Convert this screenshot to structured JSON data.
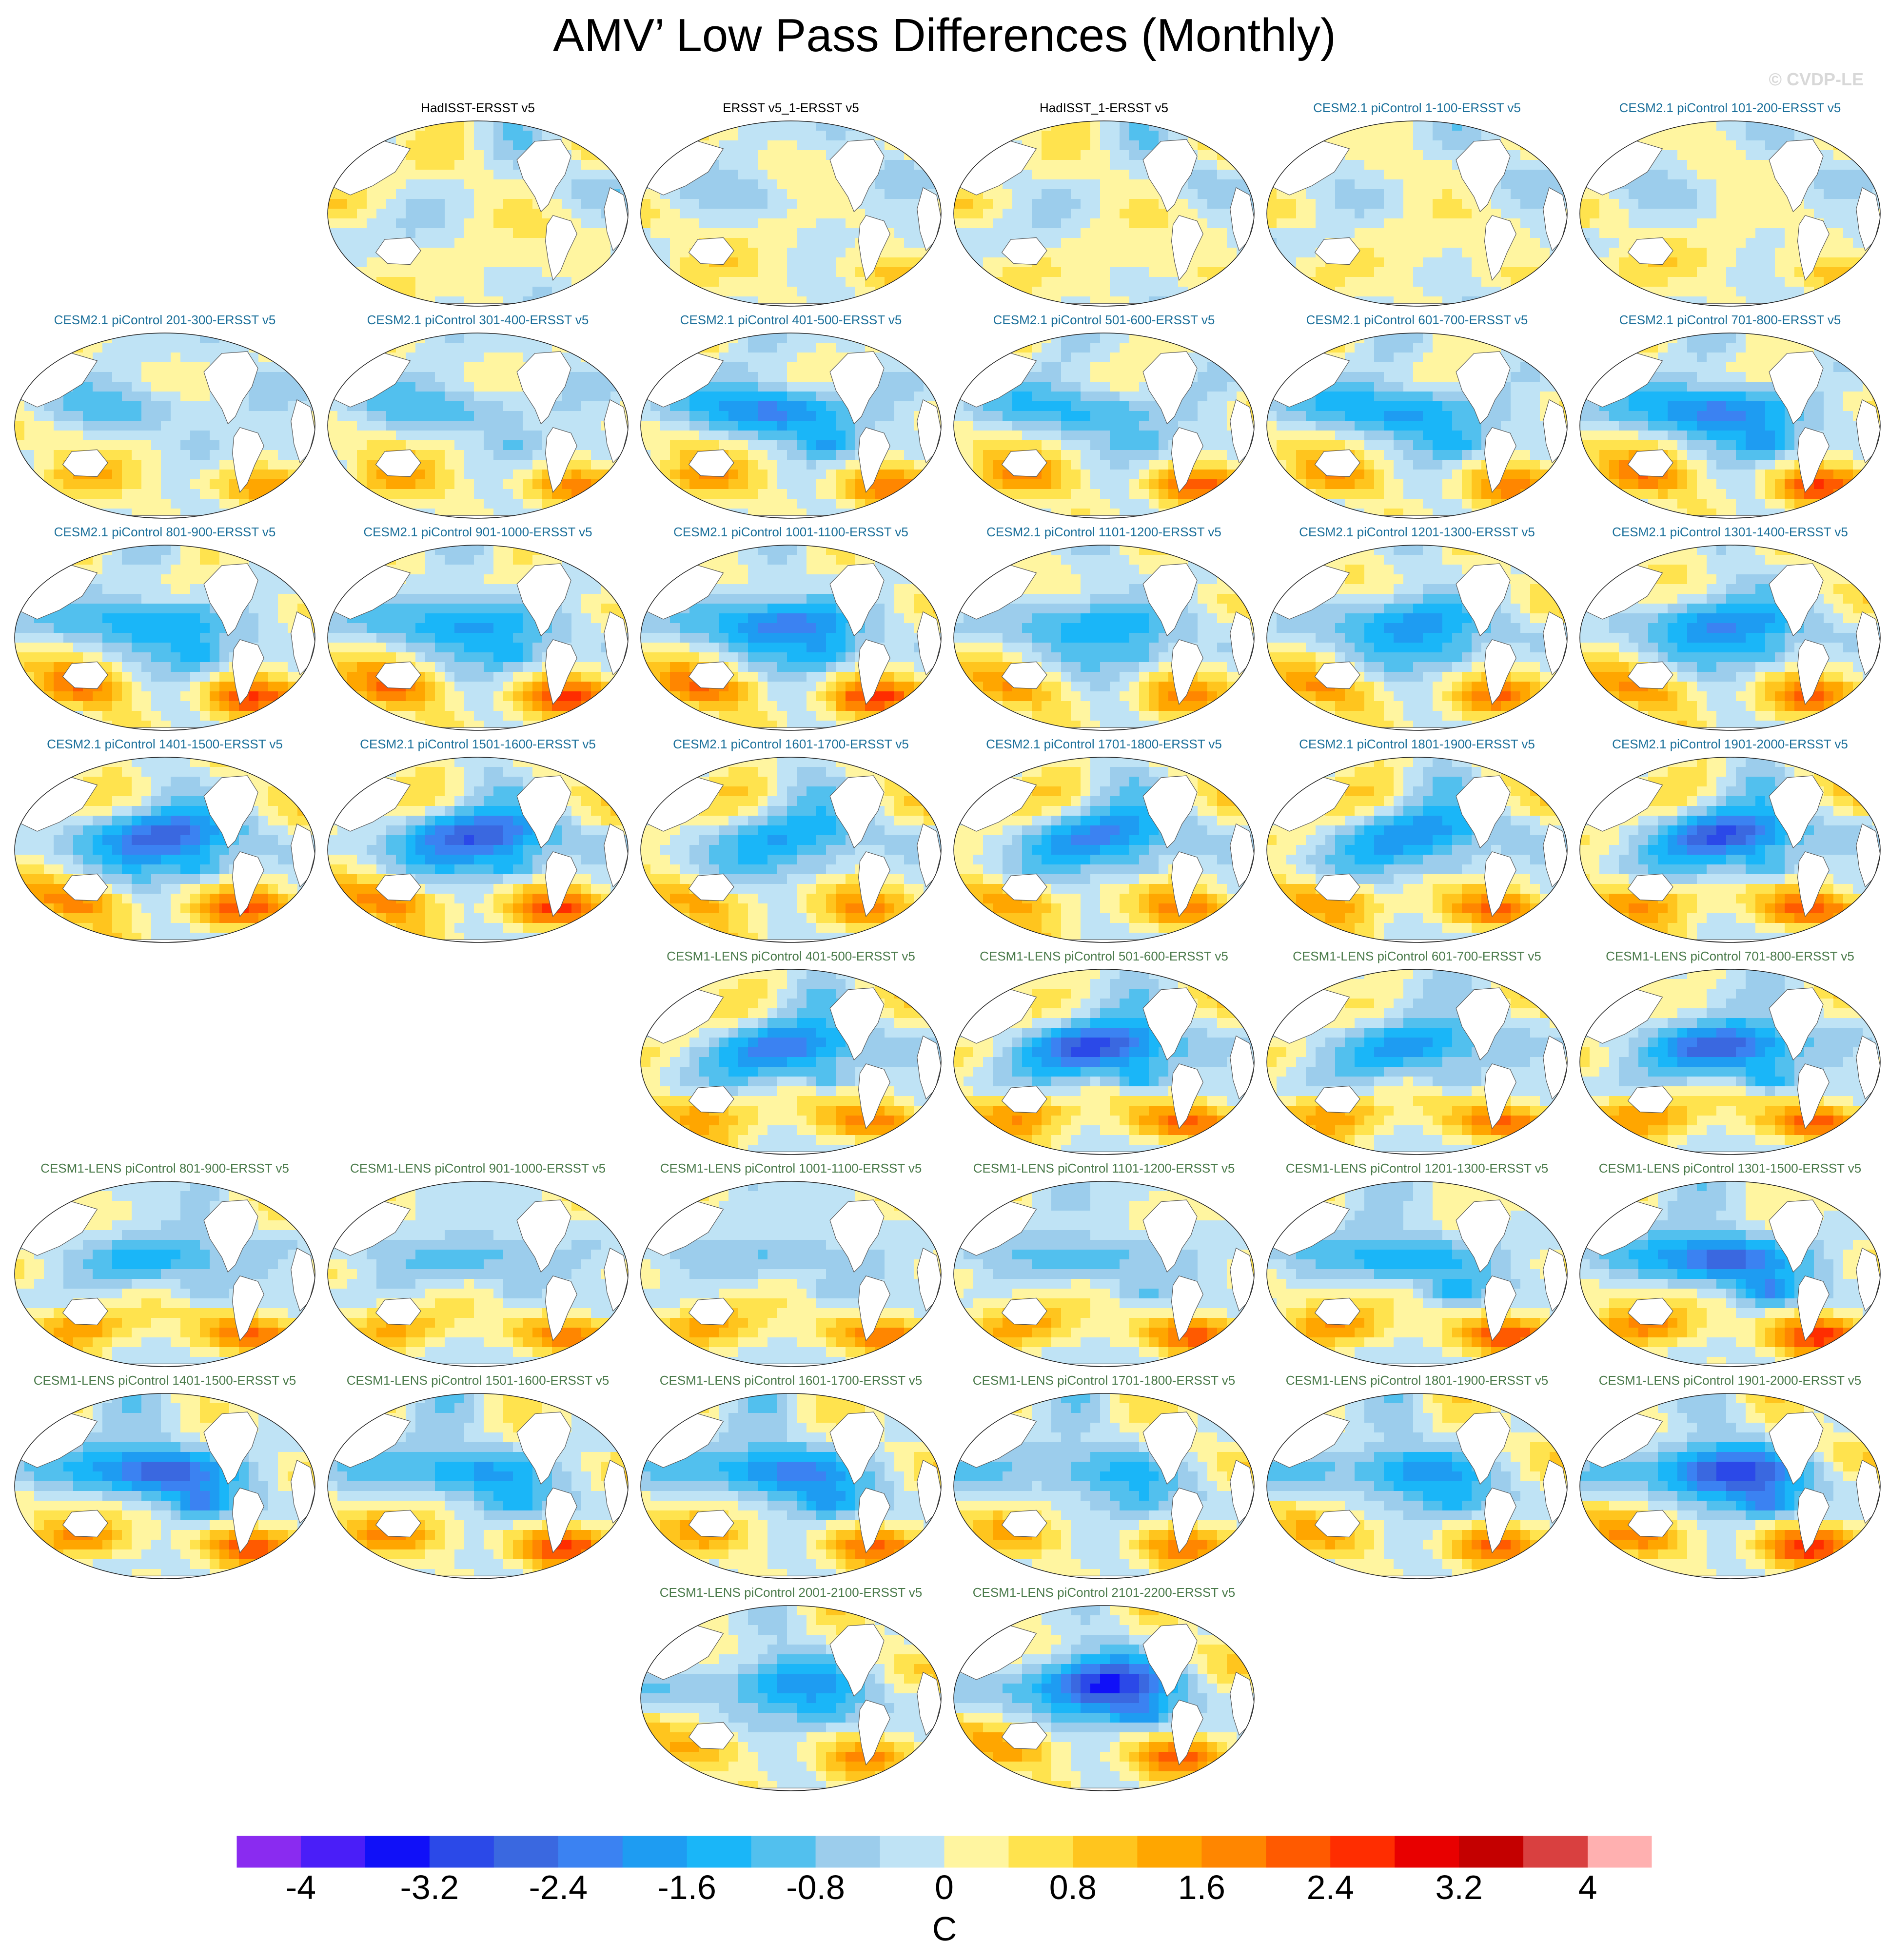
{
  "page": {
    "title": "AMV’ Low Pass Differences (Monthly)",
    "watermark": "© CVDP-LE"
  },
  "chart_data": {
    "type": "heatmap",
    "map_projection": "Robinson, Pacific-centered",
    "panels": [
      {
        "row": 0,
        "col": 1,
        "title": "HadISST-ERSST v5",
        "group": "obs",
        "pattern": [
          0.1,
          -0.3,
          0.4
        ]
      },
      {
        "row": 0,
        "col": 2,
        "title": "ERSST v5_1-ERSST v5",
        "group": "obs",
        "pattern": [
          0.35,
          -0.9,
          0.9
        ]
      },
      {
        "row": 0,
        "col": 3,
        "title": "HadISST_1-ERSST v5",
        "group": "obs",
        "pattern": [
          0.15,
          -0.5,
          0.6
        ]
      },
      {
        "row": 0,
        "col": 4,
        "title": "CESM2.1 piControl 1-100-ERSST v5",
        "group": "cesm2",
        "pattern": [
          0.25,
          -0.6,
          0.6
        ]
      },
      {
        "row": 0,
        "col": 5,
        "title": "CESM2.1 piControl 101-200-ERSST v5",
        "group": "cesm2",
        "pattern": [
          0.3,
          -0.7,
          1.0
        ]
      },
      {
        "row": 1,
        "col": 0,
        "title": "CESM2.1 piControl 201-300-ERSST v5",
        "group": "cesm2",
        "pattern": [
          0.4,
          -1.4,
          1.6
        ]
      },
      {
        "row": 1,
        "col": 1,
        "title": "CESM2.1 piControl 301-400-ERSST v5",
        "group": "cesm2",
        "pattern": [
          0.45,
          -1.6,
          1.8
        ]
      },
      {
        "row": 1,
        "col": 2,
        "title": "CESM2.1 piControl 401-500-ERSST v5",
        "group": "cesm2",
        "pattern": [
          0.5,
          -2.8,
          2.0
        ]
      },
      {
        "row": 1,
        "col": 3,
        "title": "CESM2.1 piControl 501-600-ERSST v5",
        "group": "cesm2",
        "pattern": [
          0.55,
          -1.8,
          2.2
        ]
      },
      {
        "row": 1,
        "col": 4,
        "title": "CESM2.1 piControl 601-700-ERSST v5",
        "group": "cesm2",
        "pattern": [
          0.6,
          -2.2,
          1.8
        ]
      },
      {
        "row": 1,
        "col": 5,
        "title": "CESM2.1 piControl 701-800-ERSST v5",
        "group": "cesm2",
        "pattern": [
          0.65,
          -2.6,
          2.4
        ]
      },
      {
        "row": 2,
        "col": 0,
        "title": "CESM2.1 piControl 801-900-ERSST v5",
        "group": "cesm2",
        "pattern": [
          0.7,
          -1.8,
          2.4
        ]
      },
      {
        "row": 2,
        "col": 1,
        "title": "CESM2.1 piControl 901-1000-ERSST v5",
        "group": "cesm2",
        "pattern": [
          0.75,
          -1.8,
          2.6
        ]
      },
      {
        "row": 2,
        "col": 2,
        "title": "CESM2.1 piControl 1001-1100-ERSST v5",
        "group": "cesm2",
        "pattern": [
          0.8,
          -2.2,
          2.6
        ]
      },
      {
        "row": 2,
        "col": 3,
        "title": "CESM2.1 piControl 1101-1200-ERSST v5",
        "group": "cesm2",
        "pattern": [
          0.85,
          -1.4,
          1.8
        ]
      },
      {
        "row": 2,
        "col": 4,
        "title": "CESM2.1 piControl 1201-1300-ERSST v5",
        "group": "cesm2",
        "pattern": [
          0.9,
          -1.6,
          2.0
        ]
      },
      {
        "row": 2,
        "col": 5,
        "title": "CESM2.1 piControl 1301-1400-ERSST v5",
        "group": "cesm2",
        "pattern": [
          0.95,
          -1.8,
          2.2
        ]
      },
      {
        "row": 3,
        "col": 0,
        "title": "CESM2.1 piControl 1401-1500-ERSST v5",
        "group": "cesm2",
        "pattern": [
          1.0,
          -2.4,
          2.6
        ]
      },
      {
        "row": 3,
        "col": 1,
        "title": "CESM2.1 piControl 1501-1600-ERSST v5",
        "group": "cesm2",
        "pattern": [
          1.05,
          -2.6,
          2.8
        ]
      },
      {
        "row": 3,
        "col": 2,
        "title": "CESM2.1 piControl 1601-1700-ERSST v5",
        "group": "cesm2",
        "pattern": [
          1.1,
          -1.4,
          2.0
        ]
      },
      {
        "row": 3,
        "col": 3,
        "title": "CESM2.1 piControl 1701-1800-ERSST v5",
        "group": "cesm2",
        "pattern": [
          1.15,
          -2.0,
          2.2
        ]
      },
      {
        "row": 3,
        "col": 4,
        "title": "CESM2.1 piControl 1801-1900-ERSST v5",
        "group": "cesm2",
        "pattern": [
          1.2,
          -2.0,
          2.6
        ]
      },
      {
        "row": 3,
        "col": 5,
        "title": "CESM2.1 piControl 1901-2000-ERSST v5",
        "group": "cesm2",
        "pattern": [
          1.25,
          -3.0,
          2.8
        ]
      },
      {
        "row": 4,
        "col": 2,
        "title": "CESM1-LENS piControl 401-500-ERSST v5",
        "group": "cesm1",
        "pattern": [
          1.3,
          -2.6,
          2.4
        ]
      },
      {
        "row": 4,
        "col": 3,
        "title": "CESM1-LENS piControl 501-600-ERSST v5",
        "group": "cesm1",
        "pattern": [
          1.35,
          -3.4,
          2.8
        ]
      },
      {
        "row": 4,
        "col": 4,
        "title": "CESM1-LENS piControl 601-700-ERSST v5",
        "group": "cesm1",
        "pattern": [
          1.4,
          -2.4,
          2.6
        ]
      },
      {
        "row": 4,
        "col": 5,
        "title": "CESM1-LENS piControl 701-800-ERSST v5",
        "group": "cesm1",
        "pattern": [
          1.45,
          -3.4,
          2.8
        ]
      },
      {
        "row": 5,
        "col": 0,
        "title": "CESM1-LENS piControl 801-900-ERSST v5",
        "group": "cesm1",
        "pattern": [
          1.5,
          -2.2,
          2.6
        ]
      },
      {
        "row": 5,
        "col": 1,
        "title": "CESM1-LENS piControl 901-1000-ERSST v5",
        "group": "cesm1",
        "pattern": [
          1.55,
          -1.8,
          2.2
        ]
      },
      {
        "row": 5,
        "col": 2,
        "title": "CESM1-LENS piControl 1001-1100-ERSST v5",
        "group": "cesm1",
        "pattern": [
          1.6,
          -1.6,
          2.2
        ]
      },
      {
        "row": 5,
        "col": 3,
        "title": "CESM1-LENS piControl 1101-1200-ERSST v5",
        "group": "cesm1",
        "pattern": [
          1.65,
          -1.8,
          2.4
        ]
      },
      {
        "row": 5,
        "col": 4,
        "title": "CESM1-LENS piControl 1201-1300-ERSST v5",
        "group": "cesm1",
        "pattern": [
          1.7,
          -2.4,
          2.6
        ]
      },
      {
        "row": 5,
        "col": 5,
        "title": "CESM1-LENS piControl 1301-1500-ERSST v5",
        "group": "cesm1",
        "pattern": [
          1.75,
          -3.4,
          2.8
        ]
      },
      {
        "row": 6,
        "col": 0,
        "title": "CESM1-LENS piControl 1401-1500-ERSST v5",
        "group": "cesm1",
        "pattern": [
          1.8,
          -3.4,
          2.4
        ]
      },
      {
        "row": 6,
        "col": 1,
        "title": "CESM1-LENS piControl 1501-1600-ERSST v5",
        "group": "cesm1",
        "pattern": [
          1.85,
          -2.2,
          2.6
        ]
      },
      {
        "row": 6,
        "col": 2,
        "title": "CESM1-LENS piControl 1601-1700-ERSST v5",
        "group": "cesm1",
        "pattern": [
          1.9,
          -2.6,
          2.0
        ]
      },
      {
        "row": 6,
        "col": 3,
        "title": "CESM1-LENS piControl 1701-1800-ERSST v5",
        "group": "cesm1",
        "pattern": [
          1.95,
          -1.4,
          1.8
        ]
      },
      {
        "row": 6,
        "col": 4,
        "title": "CESM1-LENS piControl 1801-1900-ERSST v5",
        "group": "cesm1",
        "pattern": [
          2.0,
          -1.8,
          2.0
        ]
      },
      {
        "row": 6,
        "col": 5,
        "title": "CESM1-LENS piControl 1901-2000-ERSST v5",
        "group": "cesm1",
        "pattern": [
          2.05,
          -3.0,
          2.8
        ]
      },
      {
        "row": 7,
        "col": 2,
        "title": "CESM1-LENS piControl 2001-2100-ERSST v5",
        "group": "cesm1",
        "pattern": [
          2.1,
          -1.6,
          1.6
        ]
      },
      {
        "row": 7,
        "col": 3,
        "title": "CESM1-LENS piControl 2101-2200-ERSST v5",
        "group": "cesm1",
        "pattern": [
          2.15,
          -3.0,
          2.2
        ]
      }
    ],
    "colorbar": {
      "levels": [
        -4.4,
        -4,
        -3.6,
        -3.2,
        -2.8,
        -2.4,
        -2,
        -1.6,
        -1.2,
        -0.8,
        -0.4,
        0,
        0.4,
        0.8,
        1.2,
        1.6,
        2,
        2.4,
        2.8,
        3.2,
        3.6,
        4,
        4.4
      ],
      "colors": [
        "#8a2bf0",
        "#4a1ef8",
        "#1010f8",
        "#2b49e8",
        "#3a68e0",
        "#3b82f2",
        "#1e9cf2",
        "#1ab6f8",
        "#52c0ee",
        "#9ccdec",
        "#bfe3f5",
        "#fff5a0",
        "#ffe34e",
        "#ffc51e",
        "#ffa600",
        "#ff8600",
        "#ff5a00",
        "#ff2d00",
        "#e80000",
        "#c40000",
        "#d94040",
        "#ffb0b0"
      ],
      "tick_labels": [
        "-4",
        "-3.2",
        "-2.4",
        "-1.6",
        "-0.8",
        "0",
        "0.8",
        "1.6",
        "2.4",
        "3.2",
        "4"
      ],
      "tick_values": [
        -4,
        -3.2,
        -2.4,
        -1.6,
        -0.8,
        0,
        0.8,
        1.6,
        2.4,
        3.2,
        4
      ],
      "units": "C"
    }
  }
}
